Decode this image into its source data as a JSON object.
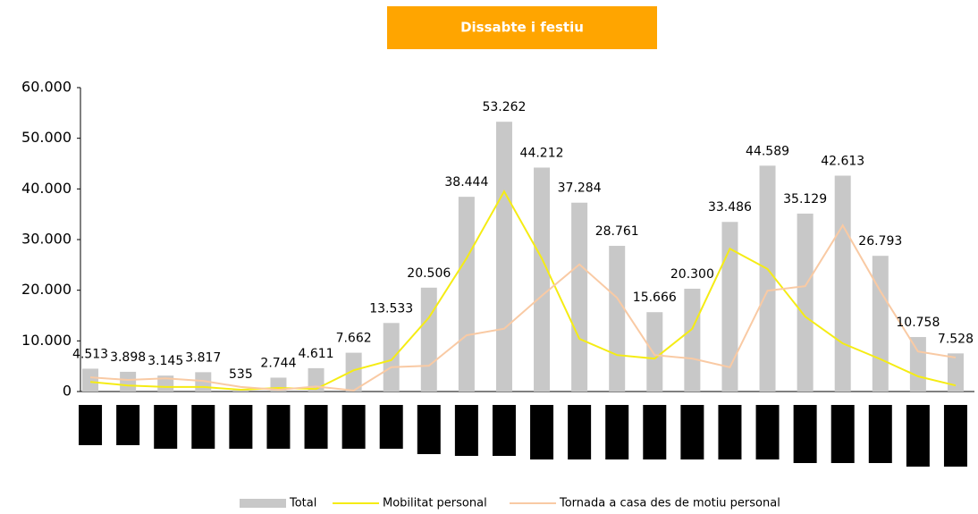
{
  "chart_data": {
    "type": "bar_line",
    "title": "Dissabte i festiu",
    "categories": [
      null,
      null,
      null,
      null,
      null,
      null,
      null,
      null,
      null,
      null,
      null,
      null,
      null,
      null,
      null,
      null,
      null,
      null,
      null,
      null,
      null,
      null,
      null,
      null
    ],
    "series": [
      {
        "name": "Total",
        "type": "bar",
        "color": "#c8c8c8",
        "values": [
          4513,
          3898,
          3145,
          3817,
          535,
          2744,
          4611,
          7662,
          13533,
          20506,
          38444,
          53262,
          44212,
          37284,
          28761,
          15666,
          20300,
          33486,
          44589,
          35129,
          42613,
          26793,
          10758,
          7528
        ],
        "value_labels": [
          "4.513",
          "3.898",
          "3.145",
          "3.817",
          "535",
          "2.744",
          "4.611",
          "7.662",
          "13.533",
          "20.506",
          "38.444",
          "53.262",
          "44.212",
          "37.284",
          "28.761",
          "15.666",
          "20.300",
          "33.486",
          "44.589",
          "35.129",
          "42.613",
          "26.793",
          "10.758",
          "7.528"
        ]
      },
      {
        "name": "Mobilitat personal",
        "type": "line",
        "color": "#f5ec14",
        "values": [
          1900,
          1200,
          900,
          900,
          350,
          700,
          500,
          4200,
          6200,
          14600,
          26300,
          39500,
          26300,
          10400,
          7200,
          6500,
          12400,
          28200,
          24200,
          14800,
          9500,
          6400,
          3000,
          1200
        ]
      },
      {
        "name": "Tornada a casa des de motiu personal",
        "type": "line",
        "color": "#f9caa4",
        "values": [
          2800,
          2300,
          2600,
          2100,
          900,
          350,
          1000,
          200,
          4800,
          5100,
          11100,
          12400,
          18900,
          25100,
          18500,
          7200,
          6500,
          4800,
          19900,
          20800,
          32800,
          19800,
          7900,
          6700
        ]
      }
    ],
    "ylim": [
      0,
      60000
    ],
    "yticks": [
      0,
      {
        "value": 10000,
        "label": "10.000"
      },
      {
        "value": 20000,
        "label": "20.000"
      },
      {
        "value": 30000,
        "label": "30.000"
      },
      {
        "value": 40000,
        "label": "40.000"
      },
      {
        "value": 50000,
        "label": "50.000"
      },
      {
        "value": 60000,
        "label": "60.000"
      }
    ],
    "legend": "bottom"
  }
}
